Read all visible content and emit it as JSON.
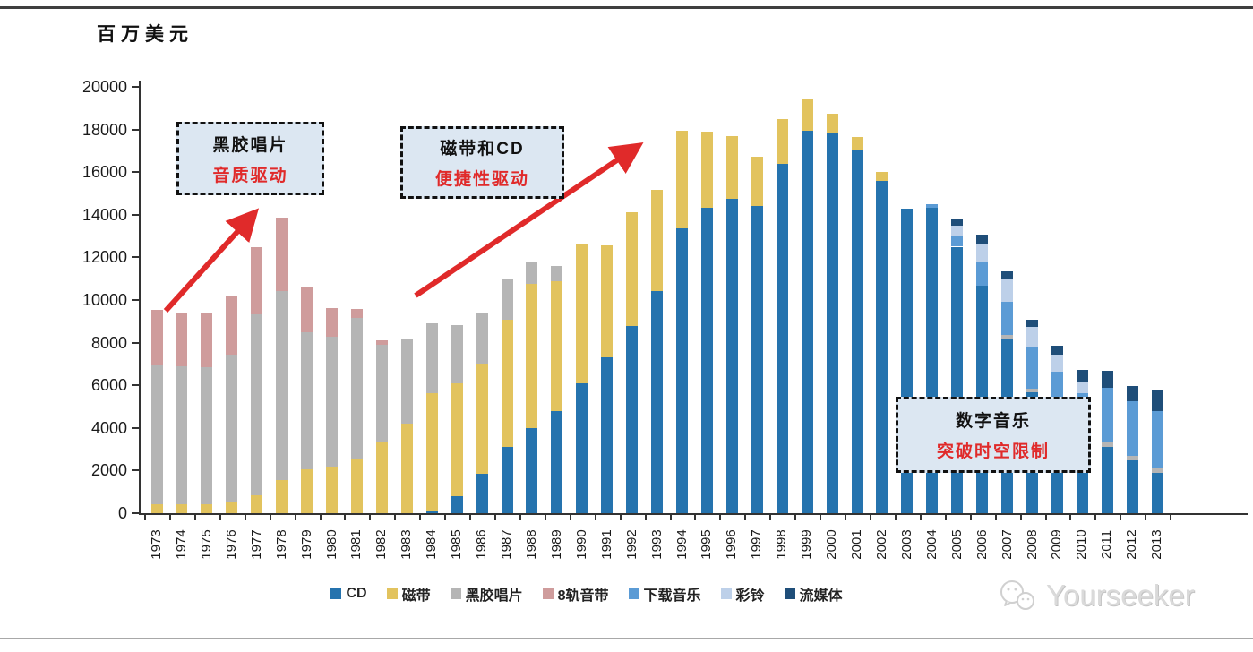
{
  "unit_label": "百万美元",
  "colors": {
    "cd": "#2573ae",
    "cassette": "#e2c35e",
    "vinyl": "#b5b5b5",
    "eight_track": "#cf9c9c",
    "downloads": "#5b9bd5",
    "ringtones": "#bdd0e9",
    "streaming": "#1f4e79",
    "annotation_red": "#e02a2a",
    "annotation_box_bg": "#dce7f2",
    "axis": "#333333"
  },
  "annotations": [
    {
      "line1": "黑胶唱片",
      "line2": "音质驱动"
    },
    {
      "line1": "磁带和CD",
      "line2": "便捷性驱动"
    },
    {
      "line1": "数字音乐",
      "line2": "突破时空限制"
    }
  ],
  "watermark": {
    "text": "Yourseeker",
    "icon": "wechat-icon"
  },
  "chart_data": {
    "type": "bar",
    "stacked": true,
    "title": "",
    "ylabel": "百万美元",
    "xlabel": "",
    "ylim": [
      0,
      20000
    ],
    "ytick_step": 2000,
    "grid": false,
    "legend_position": "bottom",
    "categories": [
      "1973",
      "1974",
      "1975",
      "1976",
      "1977",
      "1978",
      "1979",
      "1980",
      "1981",
      "1982",
      "1983",
      "1984",
      "1985",
      "1986",
      "1987",
      "1988",
      "1989",
      "1990",
      "1991",
      "1992",
      "1993",
      "1994",
      "1995",
      "1996",
      "1997",
      "1998",
      "1999",
      "2000",
      "2001",
      "2002",
      "2003",
      "2004",
      "2005",
      "2006",
      "2007",
      "2008",
      "2009",
      "2010",
      "2011",
      "2012",
      "2013"
    ],
    "series": [
      {
        "key": "cd",
        "name": "CD",
        "values": [
          0,
          0,
          0,
          0,
          0,
          0,
          0,
          0,
          0,
          0,
          0,
          90,
          800,
          1850,
          3120,
          4000,
          4800,
          6100,
          7330,
          8800,
          10400,
          13350,
          14310,
          14740,
          14400,
          16400,
          17950,
          17850,
          17050,
          15580,
          14300,
          14330,
          12500,
          10690,
          8170,
          5680,
          4500,
          3290,
          3110,
          2480,
          1890
        ]
      },
      {
        "key": "cassette",
        "name": "磁带",
        "values": [
          420,
          420,
          420,
          500,
          840,
          1560,
          2060,
          2190,
          2530,
          3330,
          4210,
          5550,
          5300,
          5180,
          5940,
          6740,
          6100,
          6490,
          5220,
          5300,
          4760,
          4600,
          3570,
          2940,
          2310,
          2100,
          1450,
          880,
          590,
          420,
          0,
          0,
          0,
          0,
          0,
          0,
          0,
          0,
          0,
          0,
          0
        ]
      },
      {
        "key": "vinyl",
        "name": "黑胶唱片",
        "values": [
          6530,
          6480,
          6430,
          6950,
          8500,
          8840,
          6440,
          6100,
          6610,
          4550,
          4000,
          3280,
          2740,
          2400,
          1900,
          1010,
          680,
          0,
          0,
          0,
          0,
          0,
          0,
          0,
          0,
          0,
          0,
          0,
          0,
          0,
          0,
          0,
          0,
          0,
          210,
          170,
          0,
          0,
          210,
          210,
          210
        ]
      },
      {
        "key": "eight_track",
        "name": "8轨音带",
        "values": [
          2570,
          2480,
          2500,
          2700,
          3160,
          3450,
          2100,
          1350,
          420,
          210,
          0,
          0,
          0,
          0,
          0,
          0,
          0,
          0,
          0,
          0,
          0,
          0,
          0,
          0,
          0,
          0,
          0,
          0,
          0,
          0,
          0,
          0,
          0,
          0,
          0,
          0,
          0,
          0,
          0,
          0,
          0
        ]
      },
      {
        "key": "downloads",
        "name": "下载音乐",
        "values": [
          0,
          0,
          0,
          0,
          0,
          0,
          0,
          0,
          0,
          0,
          0,
          0,
          0,
          0,
          0,
          0,
          0,
          0,
          0,
          0,
          0,
          0,
          0,
          0,
          0,
          0,
          0,
          0,
          0,
          0,
          0,
          150,
          500,
          1100,
          1520,
          1940,
          2150,
          2350,
          2570,
          2570,
          2690
        ]
      },
      {
        "key": "ringtones",
        "name": "彩铃",
        "values": [
          0,
          0,
          0,
          0,
          0,
          0,
          0,
          0,
          0,
          0,
          0,
          0,
          0,
          0,
          0,
          0,
          0,
          0,
          0,
          0,
          0,
          0,
          0,
          0,
          0,
          0,
          0,
          0,
          0,
          0,
          0,
          0,
          500,
          800,
          1050,
          930,
          800,
          550,
          0,
          0,
          0
        ]
      },
      {
        "key": "streaming",
        "name": "流媒体",
        "values": [
          0,
          0,
          0,
          0,
          0,
          0,
          0,
          0,
          0,
          0,
          0,
          0,
          0,
          0,
          0,
          0,
          0,
          0,
          0,
          0,
          0,
          0,
          0,
          0,
          0,
          0,
          0,
          0,
          0,
          0,
          0,
          0,
          340,
          460,
          380,
          340,
          420,
          550,
          800,
          720,
          970
        ]
      }
    ]
  }
}
